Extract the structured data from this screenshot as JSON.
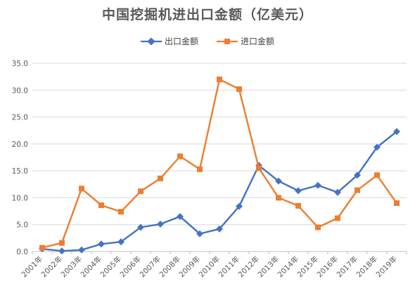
{
  "colors": {
    "export": "#4472C4",
    "import": "#ED7D31",
    "grid": "#D9D9D9",
    "axis": "#BFBFBF",
    "title": "#595959"
  },
  "chart_data": {
    "type": "line",
    "title": "中国挖掘机进出口金额（亿美元）",
    "xlabel": "",
    "ylabel": "",
    "categories": [
      "2001年",
      "2002年",
      "2003年",
      "2004年",
      "2005年",
      "2006年",
      "2007年",
      "2008年",
      "2009年",
      "2010年",
      "2011年",
      "2012年",
      "2013年",
      "2014年",
      "2015年",
      "2016年",
      "2017年",
      "2018年",
      "2019年"
    ],
    "y_ticks": [
      "0.0",
      "5.0",
      "10.0",
      "15.0",
      "20.0",
      "25.0",
      "30.0",
      "35.0"
    ],
    "ylim": [
      0,
      35
    ],
    "grid": true,
    "legend_position": "top",
    "series": [
      {
        "name": "出口金额",
        "color": "#4472C4",
        "marker": "diamond",
        "values": [
          0.5,
          0.1,
          0.3,
          1.4,
          1.8,
          4.5,
          5.1,
          6.5,
          3.3,
          4.2,
          8.4,
          16.0,
          13.1,
          11.3,
          12.3,
          11.0,
          14.2,
          19.4,
          22.3
        ]
      },
      {
        "name": "进口金额",
        "color": "#ED7D31",
        "marker": "square",
        "values": [
          0.7,
          1.6,
          11.7,
          8.6,
          7.4,
          11.2,
          13.6,
          17.7,
          15.3,
          32.0,
          30.2,
          15.5,
          10.0,
          8.5,
          4.5,
          6.2,
          11.4,
          14.2,
          9.0
        ]
      }
    ]
  }
}
